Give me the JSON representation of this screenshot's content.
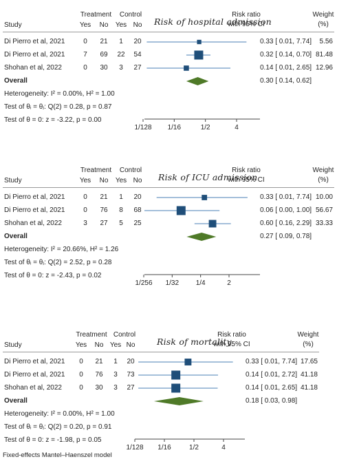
{
  "panels": [
    {
      "title": "Risk of hospital admission",
      "headers": {
        "study": "Study",
        "treatment": "Treatment",
        "control": "Control",
        "yes": "Yes",
        "no": "No",
        "rr1": "Risk ratio",
        "rr2": "with 95% CI",
        "w1": "Weight",
        "w2": "(%)"
      },
      "studies": [
        {
          "name": "Di Pierro et al, 2021",
          "t_yes": "0",
          "t_no": "21",
          "c_yes": "1",
          "c_no": "20",
          "rr": 0.33,
          "lo": 0.01,
          "hi": 7.74,
          "ci_text": "0.33 [ 0.01, 7.74]",
          "weight": 5.56,
          "weight_text": "5.56"
        },
        {
          "name": "Di Pierro et al, 2021",
          "t_yes": "7",
          "t_no": "69",
          "c_yes": "22",
          "c_no": "54",
          "rr": 0.32,
          "lo": 0.14,
          "hi": 0.7,
          "ci_text": "0.32 [ 0.14, 0.70]",
          "weight": 81.48,
          "weight_text": "81.48"
        },
        {
          "name": "Shohan et al, 2022",
          "t_yes": "0",
          "t_no": "30",
          "c_yes": "3",
          "c_no": "27",
          "rr": 0.14,
          "lo": 0.01,
          "hi": 2.65,
          "ci_text": "0.14 [ 0.01, 2.65]",
          "weight": 12.96,
          "weight_text": "12.96"
        }
      ],
      "overall": {
        "label": "Overall",
        "rr": 0.3,
        "lo": 0.14,
        "hi": 0.62,
        "ci_text": "0.30 [ 0.14, 0.62]"
      },
      "heterogeneity": "Heterogeneity: I² = 0.00%, H² = 1.00",
      "test_theta_i": "Test of θᵢ = θⱼ: Q(2) = 0.28, p = 0.87",
      "test_theta": "Test of θ = 0: z = -3.22, p = 0.00",
      "axis": {
        "scale": "log2",
        "range": [
          0.0078125,
          4
        ],
        "ticks": [
          {
            "v": 0.0078125,
            "label": "1/128"
          },
          {
            "v": 0.0625,
            "label": "1/16"
          },
          {
            "v": 0.5,
            "label": "1/2"
          },
          {
            "v": 4,
            "label": "4"
          }
        ]
      }
    },
    {
      "title": "Risk of ICU admission",
      "headers": {
        "study": "Study",
        "treatment": "Treatment",
        "control": "Control",
        "yes": "Yes",
        "no": "No",
        "rr1": "Risk ratio",
        "rr2": "with 95% CI",
        "w1": "Weight",
        "w2": "(%)"
      },
      "studies": [
        {
          "name": "Di Pierro et al, 2021",
          "t_yes": "0",
          "t_no": "21",
          "c_yes": "1",
          "c_no": "20",
          "rr": 0.33,
          "lo": 0.01,
          "hi": 7.74,
          "ci_text": "0.33 [ 0.01, 7.74]",
          "weight": 10.0,
          "weight_text": "10.00"
        },
        {
          "name": "Di Pierro et al, 2021",
          "t_yes": "0",
          "t_no": "76",
          "c_yes": "8",
          "c_no": "68",
          "rr": 0.06,
          "lo": 0.0,
          "hi": 1.0,
          "ci_text": "0.06 [ 0.00, 1.00]",
          "weight": 56.67,
          "weight_text": "56.67"
        },
        {
          "name": "Shohan et al, 2022",
          "t_yes": "3",
          "t_no": "27",
          "c_yes": "5",
          "c_no": "25",
          "rr": 0.6,
          "lo": 0.16,
          "hi": 2.29,
          "ci_text": "0.60 [ 0.16, 2.29]",
          "weight": 33.33,
          "weight_text": "33.33"
        }
      ],
      "overall": {
        "label": "Overall",
        "rr": 0.27,
        "lo": 0.09,
        "hi": 0.78,
        "ci_text": "0.27 [ 0.09, 0.78]"
      },
      "heterogeneity": "Heterogeneity: I² = 20.66%, H² = 1.26",
      "test_theta_i": "Test of θᵢ = θⱼ: Q(2) = 2.52, p = 0.28",
      "test_theta": "Test of θ = 0: z = -2.43, p = 0.02",
      "axis": {
        "scale": "log2",
        "range": [
          0.00390625,
          2
        ],
        "ticks": [
          {
            "v": 0.00390625,
            "label": "1/256"
          },
          {
            "v": 0.03125,
            "label": "1/32"
          },
          {
            "v": 0.25,
            "label": "1/4"
          },
          {
            "v": 2,
            "label": "2"
          }
        ]
      }
    },
    {
      "title": "Risk of mortality",
      "headers": {
        "study": "Study",
        "treatment": "Treatment",
        "control": "Control",
        "yes": "Yes",
        "no": "No",
        "rr1": "Risk ratio",
        "rr2": "with 95% CI",
        "w1": "Weight",
        "w2": "(%)"
      },
      "studies": [
        {
          "name": "Di Pierro et al, 2021",
          "t_yes": "0",
          "t_no": "21",
          "c_yes": "1",
          "c_no": "20",
          "rr": 0.33,
          "lo": 0.01,
          "hi": 7.74,
          "ci_text": "0.33 [ 0.01, 7.74]",
          "weight": 17.65,
          "weight_text": "17.65"
        },
        {
          "name": "Di Pierro et al, 2021",
          "t_yes": "0",
          "t_no": "76",
          "c_yes": "3",
          "c_no": "73",
          "rr": 0.14,
          "lo": 0.01,
          "hi": 2.72,
          "ci_text": "0.14 [ 0.01, 2.72]",
          "weight": 41.18,
          "weight_text": "41.18"
        },
        {
          "name": "Shohan et al, 2022",
          "t_yes": "0",
          "t_no": "30",
          "c_yes": "3",
          "c_no": "27",
          "rr": 0.14,
          "lo": 0.01,
          "hi": 2.65,
          "ci_text": "0.14 [ 0.01, 2.65]",
          "weight": 41.18,
          "weight_text": "41.18"
        }
      ],
      "overall": {
        "label": "Overall",
        "rr": 0.18,
        "lo": 0.03,
        "hi": 0.98,
        "ci_text": "0.18 [ 0.03, 0.98]"
      },
      "heterogeneity": "Heterogeneity: I² = 0.00%, H² = 1.00",
      "test_theta_i": "Test of θᵢ = θⱼ: Q(2) = 0.20, p = 0.91",
      "test_theta": "Test of θ = 0: z = -1.98, p = 0.05",
      "axis": {
        "scale": "log2",
        "range": [
          0.0078125,
          4
        ],
        "ticks": [
          {
            "v": 0.0078125,
            "label": "1/128"
          },
          {
            "v": 0.0625,
            "label": "1/16"
          },
          {
            "v": 0.5,
            "label": "1/2"
          },
          {
            "v": 4,
            "label": "4"
          }
        ]
      }
    }
  ],
  "footnote": "Fixed-effects Mantel–Haenszel model",
  "colors": {
    "study_marker": "#1f4e79",
    "ci_line": "#4a7fb5",
    "overall_diamond": "#4f7a28",
    "axis": "#444444",
    "text": "#222222"
  },
  "chart_data": [
    {
      "type": "forest",
      "title": "Risk of hospital admission",
      "x_scale": "log",
      "xlim": [
        0.0078125,
        4
      ],
      "studies": [
        {
          "name": "Di Pierro et al, 2021",
          "rr": 0.33,
          "ci": [
            0.01,
            7.74
          ],
          "weight": 5.56
        },
        {
          "name": "Di Pierro et al, 2021",
          "rr": 0.32,
          "ci": [
            0.14,
            0.7
          ],
          "weight": 81.48
        },
        {
          "name": "Shohan et al, 2022",
          "rr": 0.14,
          "ci": [
            0.01,
            2.65
          ],
          "weight": 12.96
        }
      ],
      "overall": {
        "rr": 0.3,
        "ci": [
          0.14,
          0.62
        ]
      }
    },
    {
      "type": "forest",
      "title": "Risk of ICU admission",
      "x_scale": "log",
      "xlim": [
        0.00390625,
        2
      ],
      "studies": [
        {
          "name": "Di Pierro et al, 2021",
          "rr": 0.33,
          "ci": [
            0.01,
            7.74
          ],
          "weight": 10.0
        },
        {
          "name": "Di Pierro et al, 2021",
          "rr": 0.06,
          "ci": [
            0.0,
            1.0
          ],
          "weight": 56.67
        },
        {
          "name": "Shohan et al, 2022",
          "rr": 0.6,
          "ci": [
            0.16,
            2.29
          ],
          "weight": 33.33
        }
      ],
      "overall": {
        "rr": 0.27,
        "ci": [
          0.09,
          0.78
        ]
      }
    },
    {
      "type": "forest",
      "title": "Risk of mortality",
      "x_scale": "log",
      "xlim": [
        0.0078125,
        4
      ],
      "studies": [
        {
          "name": "Di Pierro et al, 2021",
          "rr": 0.33,
          "ci": [
            0.01,
            7.74
          ],
          "weight": 17.65
        },
        {
          "name": "Di Pierro et al, 2021",
          "rr": 0.14,
          "ci": [
            0.01,
            2.72
          ],
          "weight": 41.18
        },
        {
          "name": "Shohan et al, 2022",
          "rr": 0.14,
          "ci": [
            0.01,
            2.65
          ],
          "weight": 41.18
        }
      ],
      "overall": {
        "rr": 0.18,
        "ci": [
          0.03,
          0.98
        ]
      }
    }
  ]
}
